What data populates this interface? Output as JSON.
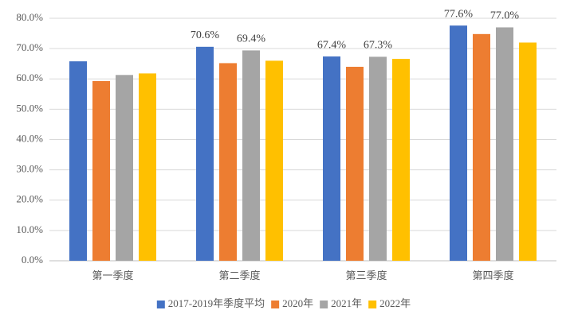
{
  "chart_data": {
    "type": "bar",
    "categories": [
      "第一季度",
      "第二季度",
      "第三季度",
      "第四季度"
    ],
    "series": [
      {
        "name": "2017-2019年季度平均",
        "color": "#4472c4",
        "values": [
          65.8,
          70.6,
          67.4,
          77.6
        ],
        "value_labels": [
          null,
          "70.6%",
          "67.4%",
          "77.6%"
        ]
      },
      {
        "name": "2020年",
        "color": "#ed7d31",
        "values": [
          59.3,
          65.2,
          64.0,
          74.8
        ]
      },
      {
        "name": "2021年",
        "color": "#a5a5a5",
        "values": [
          61.3,
          69.4,
          67.3,
          77.0
        ],
        "value_labels": [
          null,
          "69.4%",
          "67.3%",
          "77.0%"
        ]
      },
      {
        "name": "2022年",
        "color": "#ffc000",
        "values": [
          61.8,
          66.0,
          66.6,
          72.0
        ]
      }
    ],
    "ylim": [
      0,
      80
    ],
    "yticks": [
      {
        "value": 0,
        "label": "0.0%"
      },
      {
        "value": 10,
        "label": "10.0%"
      },
      {
        "value": 20,
        "label": "20.0%"
      },
      {
        "value": 30,
        "label": "30.0%"
      },
      {
        "value": 40,
        "label": "40.0%"
      },
      {
        "value": 50,
        "label": "50.0%"
      },
      {
        "value": 60,
        "label": "60.0%"
      },
      {
        "value": 70,
        "label": "70.0%"
      },
      {
        "value": 80,
        "label": "80.0%"
      }
    ],
    "grid": true,
    "legend": "bottom"
  }
}
